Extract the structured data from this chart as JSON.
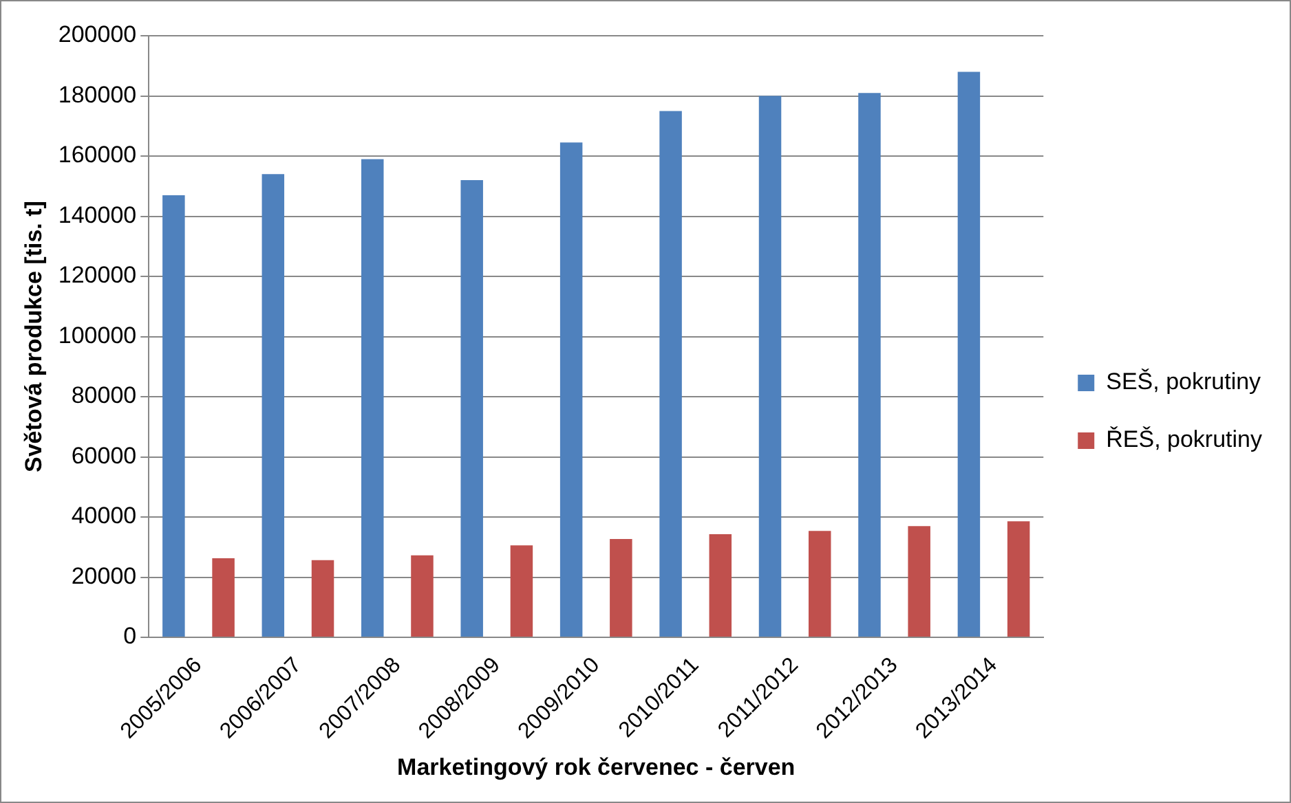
{
  "chart_data": {
    "type": "bar",
    "xlabel": "Marketingový rok červenec - červen",
    "ylabel": "Světová produkce [tis. t]",
    "categories": [
      "2005/2006",
      "2006/2007",
      "2007/2008",
      "2008/2009",
      "2009/2010",
      "2010/2011",
      "2011/2012",
      "2012/2013",
      "2013/2014"
    ],
    "series": [
      {
        "name": "SEŠ, pokrutiny",
        "color": "#4f81bd",
        "values": [
          147000,
          154000,
          159000,
          152000,
          164500,
          175000,
          180000,
          181000,
          188000
        ]
      },
      {
        "name": "ŘEŠ, pokrutiny",
        "color": "#c0504d",
        "values": [
          26300,
          25700,
          27300,
          30600,
          32700,
          34300,
          35400,
          37000,
          38600
        ]
      }
    ],
    "ylim": [
      0,
      200000
    ],
    "yticks": [
      0,
      20000,
      40000,
      60000,
      80000,
      100000,
      120000,
      140000,
      160000,
      180000,
      200000
    ],
    "grid": "y",
    "legend": "right"
  }
}
